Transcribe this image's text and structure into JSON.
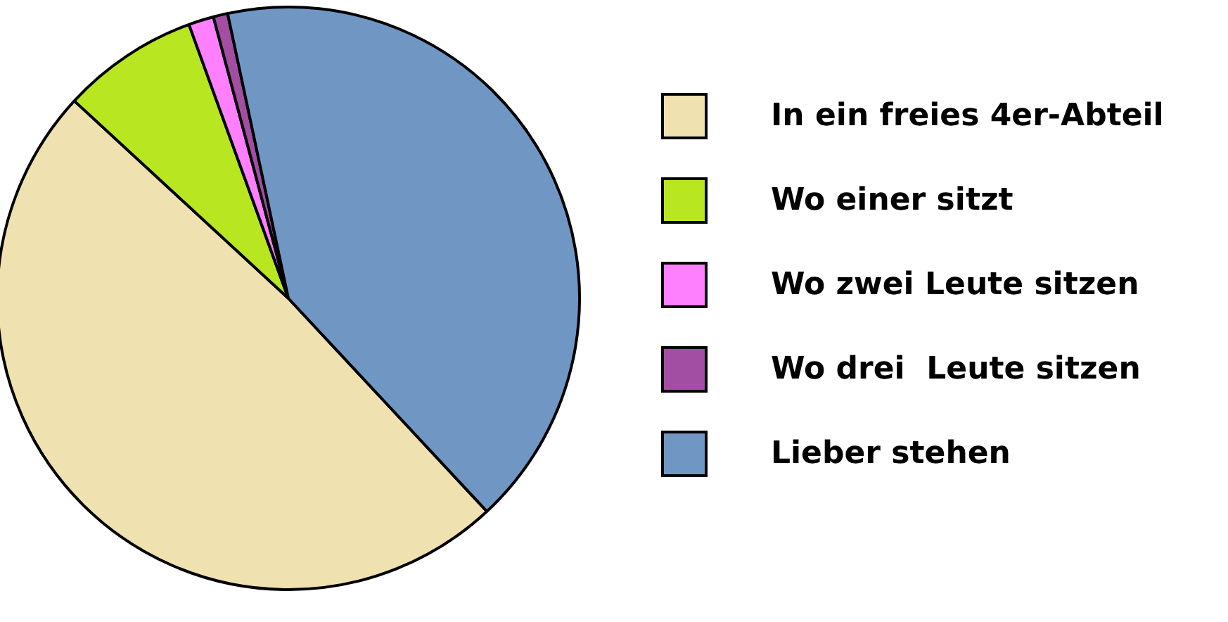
{
  "chart_data": {
    "type": "pie",
    "categories": [
      "In ein freies 4er-Abteil",
      "Wo einer sitzt",
      "Wo zwei Leute sitzen",
      "Wo drei  Leute sitzen",
      "Lieber stehen"
    ],
    "values": [
      48.8,
      7.6,
      1.4,
      0.8,
      41.4
    ],
    "colors": [
      "#efe1b0",
      "#b8e621",
      "#ff80ff",
      "#a24ea3",
      "#7096c4"
    ],
    "legend": "right"
  }
}
